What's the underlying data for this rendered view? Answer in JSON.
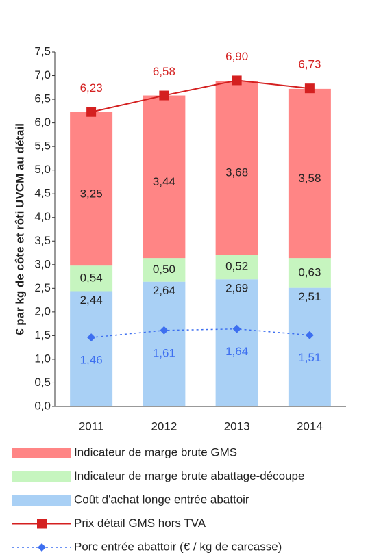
{
  "chart_data": {
    "type": "bar",
    "y_label": "€ par kg de côte et rôti UVCM au détail",
    "categories": [
      "2011",
      "2012",
      "2013",
      "2014"
    ],
    "series": [
      {
        "name": "Coût d'achat longe entrée abattoir",
        "type": "bar",
        "color": "#a9d0f5",
        "values": [
          2.44,
          2.64,
          2.69,
          2.51
        ],
        "value_labels": [
          "2,44",
          "2,64",
          "2,69",
          "2,51"
        ]
      },
      {
        "name": "Indicateur de marge brute abattage-découpe",
        "type": "bar",
        "color": "#c6f5bf",
        "values": [
          0.54,
          0.5,
          0.52,
          0.63
        ],
        "value_labels": [
          "0,54",
          "0,50",
          "0,52",
          "0,63"
        ]
      },
      {
        "name": "Indicateur de marge brute GMS",
        "type": "bar",
        "color": "#ff8585",
        "values": [
          3.25,
          3.44,
          3.68,
          3.58
        ],
        "value_labels": [
          "3,25",
          "3,44",
          "3,68",
          "3,58"
        ]
      },
      {
        "name": "Prix détail GMS hors TVA",
        "type": "line",
        "color": "#d42020",
        "values": [
          6.23,
          6.58,
          6.9,
          6.73
        ],
        "value_labels": [
          "6,23",
          "6,58",
          "6,90",
          "6,73"
        ]
      },
      {
        "name": "Porc entrée abattoir (€ / kg de carcasse)",
        "type": "line",
        "dashed": true,
        "color": "#3d6ff0",
        "values": [
          1.46,
          1.61,
          1.64,
          1.51
        ],
        "value_labels": [
          "1,46",
          "1,61",
          "1,64",
          "1,51"
        ]
      }
    ],
    "ylim": [
      0,
      7.5
    ],
    "yticks": [
      {
        "value": 0,
        "label": "0,0"
      },
      {
        "value": 0.5,
        "label": "0,5"
      },
      {
        "value": 1,
        "label": "1,0"
      },
      {
        "value": 1.5,
        "label": "1,5"
      },
      {
        "value": 2,
        "label": "2,0"
      },
      {
        "value": 2.5,
        "label": "2,5"
      },
      {
        "value": 3,
        "label": "3,0"
      },
      {
        "value": 3.5,
        "label": "3,5"
      },
      {
        "value": 4,
        "label": "4,0"
      },
      {
        "value": 4.5,
        "label": "4,5"
      },
      {
        "value": 5,
        "label": "5,0"
      },
      {
        "value": 5.5,
        "label": "5,5"
      },
      {
        "value": 6,
        "label": "6,0"
      },
      {
        "value": 6.5,
        "label": "6,5"
      },
      {
        "value": 7,
        "label": "7,0"
      },
      {
        "value": 7.5,
        "label": "7,5"
      }
    ]
  }
}
